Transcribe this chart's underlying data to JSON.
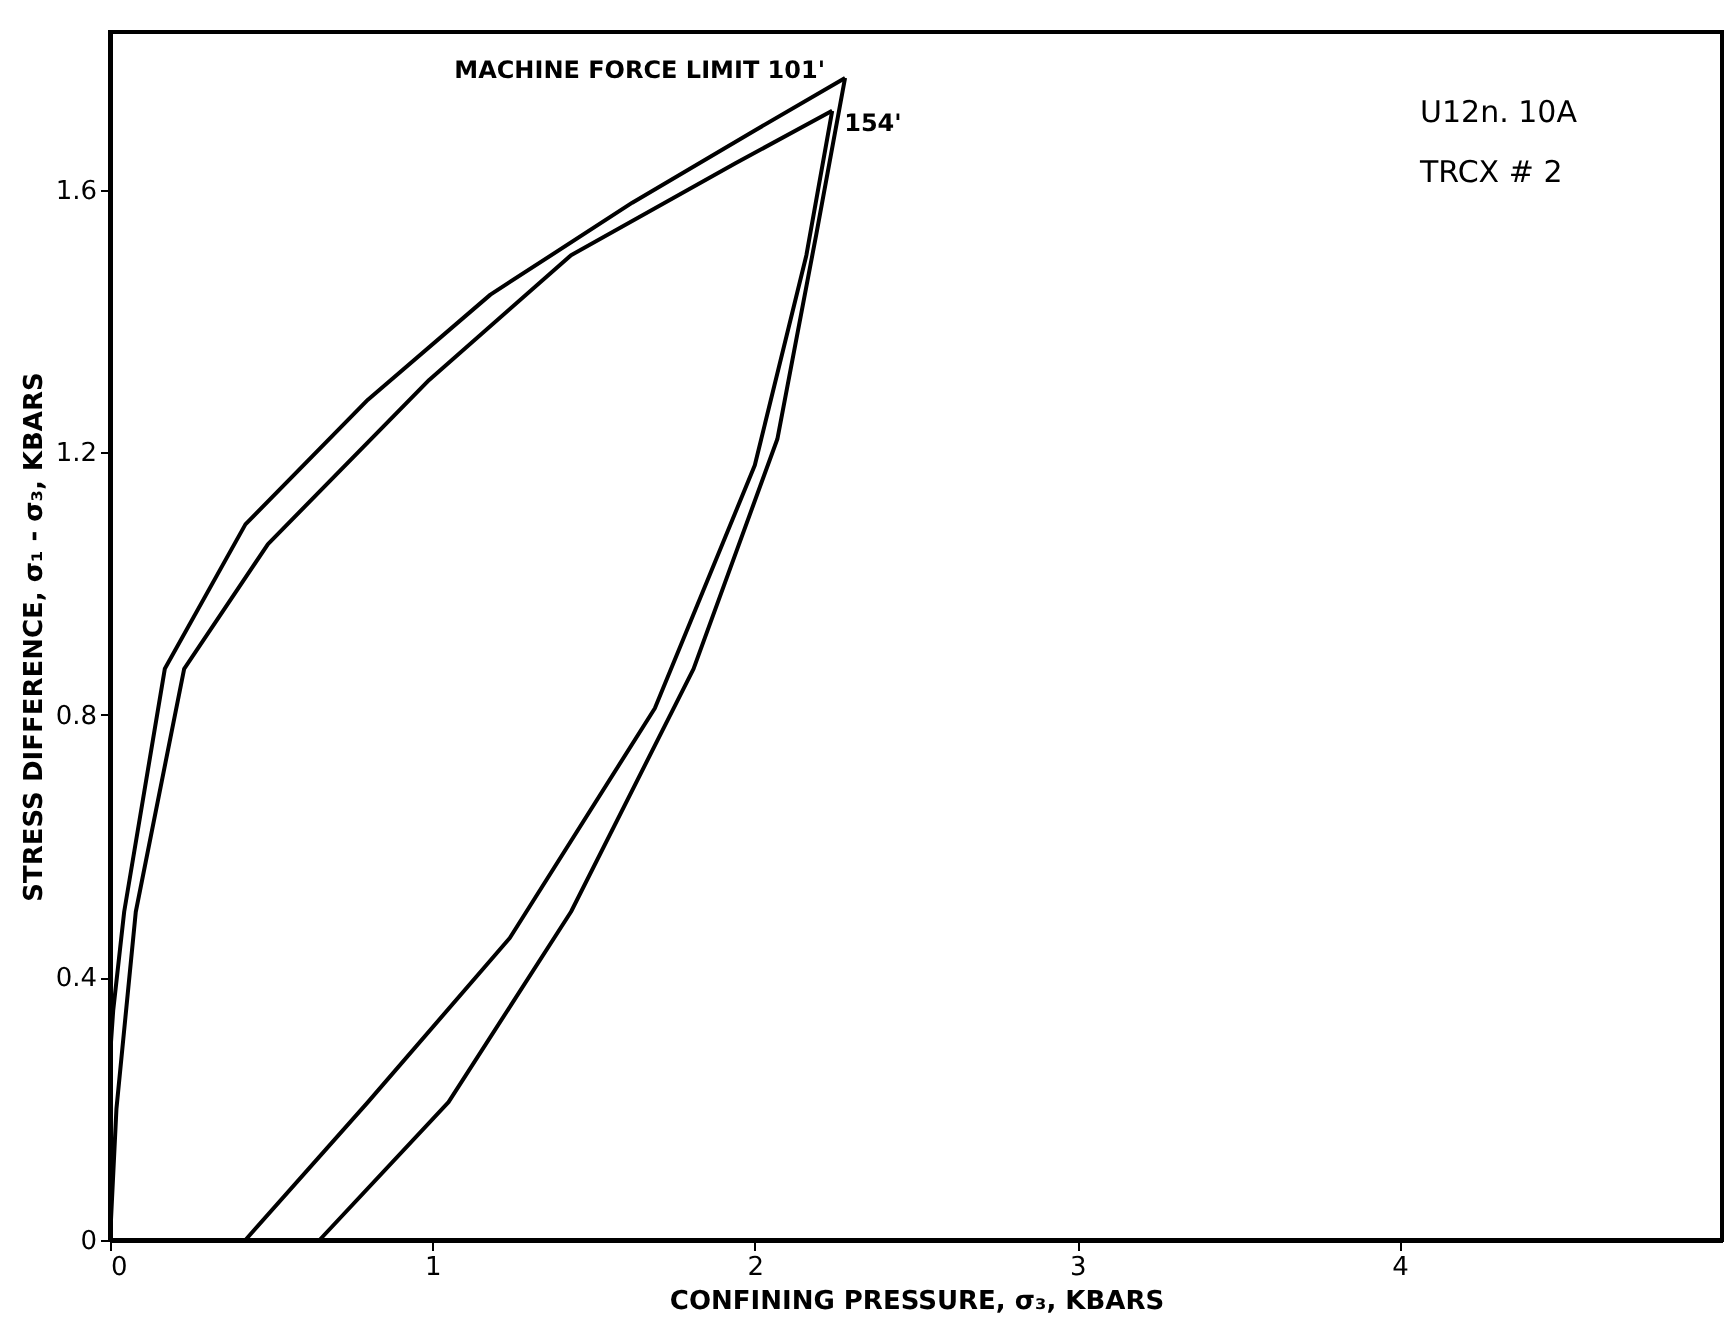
{
  "chart_data": {
    "type": "line",
    "xlabel": "CONFINING PRESSURE, σ₃, KBARS",
    "ylabel": "STRESS DIFFERENCE, σ₁ - σ₃, KBARS",
    "series": [
      {
        "color": "#000000",
        "x": [
          0,
          0,
          0.01,
          0.044,
          0.17,
          0.42,
          0.8,
          1.18,
          1.62,
          2.0,
          2.28
        ],
        "values": [
          0,
          0.28,
          0.35,
          0.5,
          0.87,
          1.09,
          1.28,
          1.44,
          1.58,
          1.69,
          1.77
        ]
      },
      {
        "color": "#000000",
        "x": [
          2.28,
          2.19,
          2.07,
          1.81,
          1.43,
          1.05,
          0.65
        ],
        "values": [
          1.77,
          1.53,
          1.22,
          0.87,
          0.5,
          0.21,
          0
        ]
      },
      {
        "color": "#000000",
        "x": [
          0,
          0.02,
          0.08,
          0.23,
          0.49,
          0.99,
          1.43,
          1.94,
          2.24
        ],
        "values": [
          0,
          0.2,
          0.5,
          0.87,
          1.06,
          1.31,
          1.5,
          1.64,
          1.72
        ]
      },
      {
        "color": "#000000",
        "x": [
          2.24,
          2.16,
          2.0,
          1.69,
          1.24,
          0.8,
          0.42
        ],
        "values": [
          1.72,
          1.5,
          1.18,
          0.81,
          0.46,
          0.21,
          0
        ]
      }
    ],
    "annotations": [
      {
        "text": "MACHINE FORCE LIMIT 101'",
        "x": 2.28,
        "y": 1.77
      },
      {
        "text": "154'",
        "x": 2.24,
        "y": 1.72
      },
      "U12n. 10A",
      "TRCX # 2"
    ],
    "xlim": [
      0,
      5
    ],
    "ylim": [
      0,
      1.84
    ],
    "xticks": [
      0,
      1,
      2,
      3,
      4
    ],
    "yticks": [
      0,
      0.4,
      0.8,
      1.2,
      1.6
    ],
    "grid": false,
    "marker": "none",
    "line_style": "solid"
  }
}
